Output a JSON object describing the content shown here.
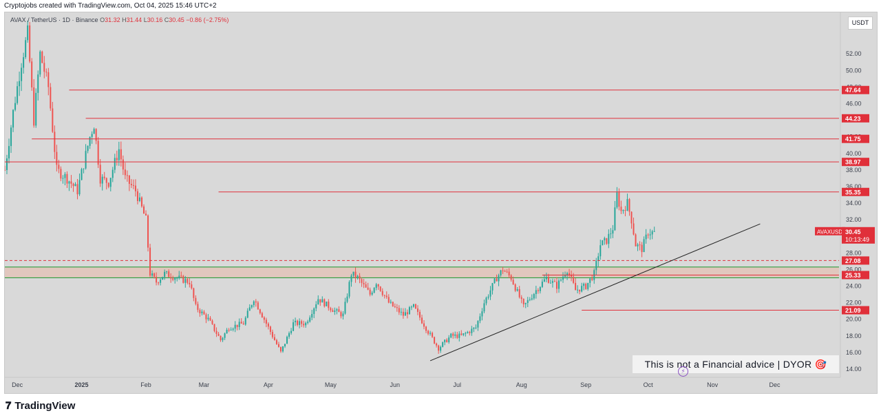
{
  "header": {
    "credit": "Cryptojobs created with TradingView.com, Oct 04, 2025 15:46 UTC+2"
  },
  "legend": {
    "symbol": "AVAX / TetherUS · 1D · Binance",
    "open_label": "O",
    "open": "31.32",
    "high_label": "H",
    "high": "31.44",
    "low_label": "L",
    "low": "30.16",
    "close_label": "C",
    "close": "30.45",
    "change": "−0.86 (−2.75%)"
  },
  "currency": "USDT",
  "disclaimer": "This is not a Financial advice | DYOR 🎯",
  "footer": {
    "brand": "TradingView"
  },
  "colors": {
    "background": "#d9d9d9",
    "up": "#26a69a",
    "down": "#ef5350",
    "level_line": "#e0303a",
    "support_zone_border": "#2e9e3e",
    "support_zone_fill": "#e8b8a8",
    "trendline": "#222222"
  },
  "chart_data": {
    "type": "candlestick",
    "ylim": [
      13.0,
      57.0
    ],
    "y_ticks": [
      "14.00",
      "16.00",
      "18.00",
      "20.00",
      "22.00",
      "24.00",
      "26.00",
      "28.00",
      "30.00",
      "32.00",
      "34.00",
      "36.00",
      "38.00",
      "40.00",
      "42.00",
      "44.00",
      "46.00",
      "48.00",
      "50.00",
      "52.00"
    ],
    "x_ticks": [
      {
        "label": "Dec",
        "date": "2024-12-01"
      },
      {
        "label": "2025",
        "date": "2025-01-01"
      },
      {
        "label": "Feb",
        "date": "2025-02-01"
      },
      {
        "label": "Mar",
        "date": "2025-03-01"
      },
      {
        "label": "Apr",
        "date": "2025-04-01"
      },
      {
        "label": "May",
        "date": "2025-05-01"
      },
      {
        "label": "Jun",
        "date": "2025-06-01"
      },
      {
        "label": "Jul",
        "date": "2025-07-01"
      },
      {
        "label": "Aug",
        "date": "2025-08-01"
      },
      {
        "label": "Sep",
        "date": "2025-09-01"
      },
      {
        "label": "Oct",
        "date": "2025-10-01"
      },
      {
        "label": "Nov",
        "date": "2025-11-01"
      },
      {
        "label": "Dec",
        "date": "2025-12-01"
      }
    ],
    "x_range": [
      "2024-11-25",
      "2026-01-01"
    ],
    "price_path": [
      {
        "date": "2024-11-25",
        "price": 38.0
      },
      {
        "date": "2024-11-29",
        "price": 45.0
      },
      {
        "date": "2024-12-03",
        "price": 51.0
      },
      {
        "date": "2024-12-06",
        "price": 54.5
      },
      {
        "date": "2024-12-09",
        "price": 44.0
      },
      {
        "date": "2024-12-12",
        "price": 52.0
      },
      {
        "date": "2024-12-16",
        "price": 48.0
      },
      {
        "date": "2024-12-20",
        "price": 38.0
      },
      {
        "date": "2024-12-25",
        "price": 37.0
      },
      {
        "date": "2024-12-30",
        "price": 35.5
      },
      {
        "date": "2025-01-05",
        "price": 42.0
      },
      {
        "date": "2025-01-07",
        "price": 43.5
      },
      {
        "date": "2025-01-10",
        "price": 37.0
      },
      {
        "date": "2025-01-14",
        "price": 36.5
      },
      {
        "date": "2025-01-19",
        "price": 40.5
      },
      {
        "date": "2025-01-22",
        "price": 37.0
      },
      {
        "date": "2025-01-27",
        "price": 35.5
      },
      {
        "date": "2025-02-01",
        "price": 32.0
      },
      {
        "date": "2025-02-03",
        "price": 25.5
      },
      {
        "date": "2025-02-06",
        "price": 24.5
      },
      {
        "date": "2025-02-10",
        "price": 25.5
      },
      {
        "date": "2025-02-16",
        "price": 25.0
      },
      {
        "date": "2025-02-22",
        "price": 24.5
      },
      {
        "date": "2025-02-25",
        "price": 21.5
      },
      {
        "date": "2025-03-03",
        "price": 20.0
      },
      {
        "date": "2025-03-09",
        "price": 17.5
      },
      {
        "date": "2025-03-13",
        "price": 19.0
      },
      {
        "date": "2025-03-20",
        "price": 19.5
      },
      {
        "date": "2025-03-25",
        "price": 22.5
      },
      {
        "date": "2025-03-31",
        "price": 19.5
      },
      {
        "date": "2025-04-07",
        "price": 16.0
      },
      {
        "date": "2025-04-13",
        "price": 19.5
      },
      {
        "date": "2025-04-19",
        "price": 19.5
      },
      {
        "date": "2025-04-25",
        "price": 22.5
      },
      {
        "date": "2025-05-03",
        "price": 21.0
      },
      {
        "date": "2025-05-07",
        "price": 20.5
      },
      {
        "date": "2025-05-11",
        "price": 25.5
      },
      {
        "date": "2025-05-14",
        "price": 25.0
      },
      {
        "date": "2025-05-20",
        "price": 23.0
      },
      {
        "date": "2025-05-23",
        "price": 24.5
      },
      {
        "date": "2025-05-29",
        "price": 22.0
      },
      {
        "date": "2025-06-05",
        "price": 20.5
      },
      {
        "date": "2025-06-10",
        "price": 21.5
      },
      {
        "date": "2025-06-17",
        "price": 18.5
      },
      {
        "date": "2025-06-22",
        "price": 16.5
      },
      {
        "date": "2025-06-28",
        "price": 18.0
      },
      {
        "date": "2025-07-03",
        "price": 18.0
      },
      {
        "date": "2025-07-10",
        "price": 19.0
      },
      {
        "date": "2025-07-14",
        "price": 22.0
      },
      {
        "date": "2025-07-20",
        "price": 25.0
      },
      {
        "date": "2025-07-23",
        "price": 26.0
      },
      {
        "date": "2025-07-27",
        "price": 25.0
      },
      {
        "date": "2025-08-02",
        "price": 21.5
      },
      {
        "date": "2025-08-08",
        "price": 23.5
      },
      {
        "date": "2025-08-13",
        "price": 25.0
      },
      {
        "date": "2025-08-18",
        "price": 24.0
      },
      {
        "date": "2025-08-23",
        "price": 26.0
      },
      {
        "date": "2025-08-27",
        "price": 23.5
      },
      {
        "date": "2025-09-01",
        "price": 24.0
      },
      {
        "date": "2025-09-05",
        "price": 25.5
      },
      {
        "date": "2025-09-08",
        "price": 29.0
      },
      {
        "date": "2025-09-11",
        "price": 29.5
      },
      {
        "date": "2025-09-14",
        "price": 31.0
      },
      {
        "date": "2025-09-16",
        "price": 35.0
      },
      {
        "date": "2025-09-18",
        "price": 33.0
      },
      {
        "date": "2025-09-21",
        "price": 34.0
      },
      {
        "date": "2025-09-23",
        "price": 32.0
      },
      {
        "date": "2025-09-25",
        "price": 29.0
      },
      {
        "date": "2025-09-28",
        "price": 28.5
      },
      {
        "date": "2025-10-01",
        "price": 30.5
      },
      {
        "date": "2025-10-04",
        "price": 30.45
      }
    ],
    "horizontal_levels": [
      {
        "price": 47.64,
        "label": "47.64",
        "from": "2024-12-26"
      },
      {
        "price": 44.23,
        "label": "44.23",
        "from": "2025-01-03"
      },
      {
        "price": 41.75,
        "label": "41.75",
        "from": "2024-12-08"
      },
      {
        "price": 38.97,
        "label": "38.97",
        "from": "2024-11-25"
      },
      {
        "price": 35.35,
        "label": "35.35",
        "from": "2025-03-08"
      },
      {
        "price": 27.08,
        "label": "27.08",
        "from": "2024-11-25",
        "style": "dashed"
      },
      {
        "price": 25.33,
        "label": "25.33",
        "from": "2025-08-11"
      },
      {
        "price": 21.09,
        "label": "21.09",
        "from": "2025-08-30"
      }
    ],
    "support_zone": [
      25.0,
      26.3
    ],
    "trendline": [
      {
        "date": "2025-06-18",
        "price": 15.0
      },
      {
        "date": "2025-11-24",
        "price": 31.5
      }
    ],
    "last_price": {
      "label": "AVAXUSDT",
      "price": "30.45",
      "countdown": "10:13:49"
    }
  }
}
